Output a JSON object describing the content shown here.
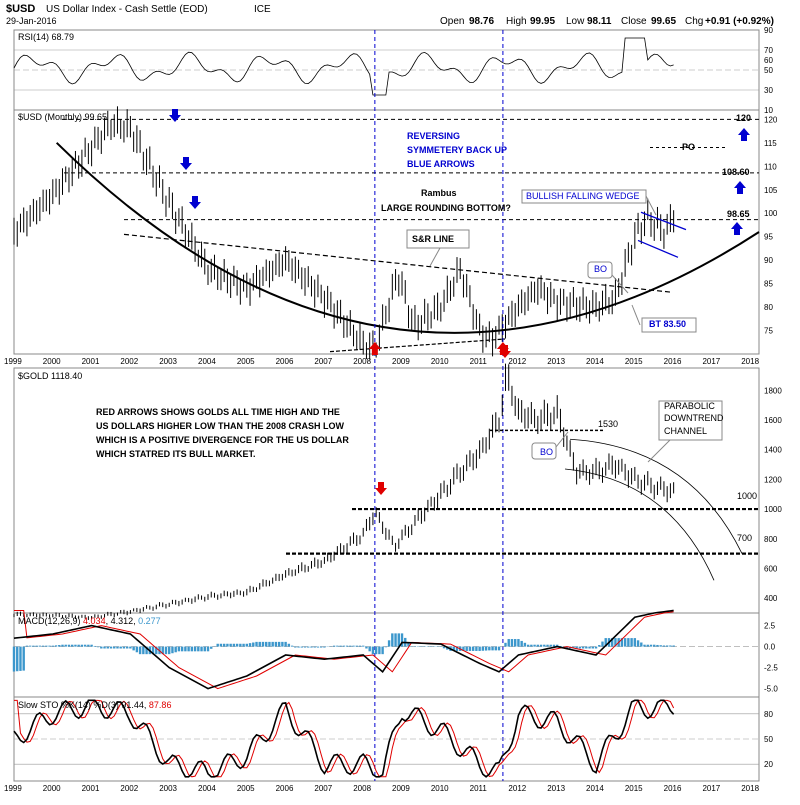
{
  "header": {
    "symbol": "$USD",
    "name": "US Dollar Index - Cash Settle (EOD)",
    "exchange": "ICE",
    "date": "29-Jan-2016",
    "open_label": "Open",
    "open": "98.76",
    "high_label": "High",
    "high": "99.95",
    "low_label": "Low",
    "low": "98.11",
    "close_label": "Close",
    "close": "99.65",
    "chg_label": "Chg",
    "chg": "+0.91 (+0.92%)"
  },
  "rsi_panel": {
    "label": "RSI(14)",
    "value": "68.79",
    "ticks": [
      "70",
      "50",
      "30"
    ],
    "top_tick": "90",
    "mid_tick": "60",
    "low_tick": "10"
  },
  "usd_panel": {
    "label": "$USD (Monthly)",
    "value": "99.65",
    "ticks": [
      "120",
      "115",
      "110",
      "105",
      "100",
      "95",
      "90",
      "85",
      "80",
      "75"
    ],
    "levels": {
      "top": "120",
      "mid": "108.60",
      "low": "98.65"
    },
    "annotations": {
      "reversing": [
        "REVERSING",
        "SYMMETERY BACK UP",
        "BLUE ARROWS"
      ],
      "po": "PO",
      "rambus": "Rambus",
      "rounding": "LARGE ROUNDING BOTTOM?",
      "wedge": "BULLISH FALLING WEDGE",
      "sr_line": "S&R LINE",
      "bo": "BO",
      "bt": "BT 83.50"
    }
  },
  "gold_panel": {
    "label": "$GOLD",
    "value": "1118.40",
    "ticks": [
      "1800",
      "1600",
      "1400",
      "1200",
      "1000",
      "800",
      "600",
      "400"
    ],
    "levels": {
      "l1530": "1530",
      "l1000": "1000",
      "l700": "700"
    },
    "annotations": {
      "red_arrows": [
        "RED ARROWS SHOWS GOLDS ALL TIME HIGH AND THE",
        "US DOLLARS HIGHER LOW THAN THE 2008 CRASH LOW",
        "WHICH IS A POSITIVE DIVERGENCE FOR THE US DOLLAR",
        "WHICH STATRED ITS BULL MARKET."
      ],
      "parabolic": [
        "PARABOLIC",
        "DOWNTREND",
        "CHANNEL"
      ],
      "bo": "BO"
    }
  },
  "macd_panel": {
    "label": "MACD(12,26,9)",
    "v1": "4.312",
    "v2": "4.034",
    "v3": "0.277",
    "ticks": [
      "2.5",
      "0.0",
      "-2.5",
      "-5.0"
    ]
  },
  "sto_panel": {
    "label": "Slow STO %K(14) %D(3)",
    "v1": "91.44",
    "v2": "87.86",
    "ticks": [
      "80",
      "50",
      "20"
    ]
  },
  "years": [
    "1999",
    "2000",
    "2001",
    "2002",
    "2003",
    "2004",
    "2005",
    "2006",
    "2007",
    "2008",
    "2009",
    "2010",
    "2011",
    "2012",
    "2013",
    "2014",
    "2015",
    "2016",
    "2017",
    "2018"
  ],
  "chart_data": [
    {
      "type": "line",
      "title": "$USD US Dollar Index - Cash Settle (EOD) ICE",
      "series": [
        {
          "name": "$USD (Monthly)",
          "x": [
            1999.0,
            2000.0,
            2001.0,
            2001.5,
            2002.0,
            2003.0,
            2004.0,
            2005.0,
            2006.0,
            2007.0,
            2008.0,
            2008.3,
            2008.9,
            2009.3,
            2010.0,
            2010.5,
            2011.0,
            2011.3,
            2012.0,
            2012.5,
            2013.0,
            2014.0,
            2014.5,
            2015.0,
            2015.3,
            2015.8,
            2016.0
          ],
          "y": [
            96,
            104,
            114,
            119,
            118,
            102,
            88,
            84,
            90,
            82,
            72,
            71,
            87,
            76,
            80,
            88,
            75,
            73,
            80,
            84,
            81,
            80,
            82,
            95,
            99,
            96,
            99.65
          ]
        }
      ],
      "ylim": [
        70,
        122
      ]
    },
    {
      "type": "line",
      "title": "$GOLD",
      "series": [
        {
          "name": "$GOLD",
          "x": [
            1999.0,
            2000.0,
            2001.0,
            2002.0,
            2003.0,
            2004.0,
            2005.0,
            2006.0,
            2007.0,
            2008.0,
            2008.3,
            2008.8,
            2009.5,
            2010.0,
            2010.5,
            2011.0,
            2011.5,
            2011.7,
            2012.0,
            2012.5,
            2013.0,
            2013.5,
            2014.0,
            2014.5,
            2015.0,
            2015.5,
            2016.0
          ],
          "y": [
            290,
            285,
            270,
            310,
            360,
            410,
            440,
            560,
            650,
            830,
            980,
            750,
            960,
            1100,
            1250,
            1380,
            1600,
            1900,
            1650,
            1600,
            1650,
            1250,
            1250,
            1300,
            1200,
            1150,
            1118
          ]
        }
      ],
      "ylim": [
        300,
        1950
      ]
    },
    {
      "type": "line",
      "title": "MACD(12,26,9)",
      "series": [
        {
          "name": "MACD(12,26,9)",
          "x": [
            1999,
            2000,
            2001,
            2002,
            2003,
            2004,
            2005,
            2006,
            2007,
            2008,
            2008.5,
            2009,
            2010,
            2011,
            2011.5,
            2012,
            2013,
            2014,
            2015,
            2015.5,
            2016
          ],
          "y": [
            1.0,
            1.5,
            2.5,
            1.5,
            -2.5,
            -5.0,
            -3.5,
            -1.0,
            -1.5,
            -1.0,
            -3.0,
            0.5,
            0.3,
            -2.0,
            -3.0,
            -1.0,
            0.0,
            -1.0,
            3.5,
            4.0,
            4.3
          ]
        },
        {
          "name": "signal",
          "values": "4.034"
        }
      ],
      "ylim": [
        -6,
        4
      ]
    },
    {
      "type": "line",
      "title": "Slow STO %K(14) %D(3)",
      "series": [
        {
          "name": "%K",
          "x": [
            1999,
            2000,
            2001,
            2002,
            2003,
            2004,
            2005,
            2006,
            2007,
            2008,
            2008.5,
            2009,
            2010,
            2011,
            2011.5,
            2012,
            2013,
            2014,
            2015,
            2015.5,
            2016
          ],
          "y": [
            50,
            80,
            90,
            80,
            20,
            10,
            30,
            85,
            20,
            20,
            10,
            85,
            60,
            20,
            10,
            80,
            70,
            20,
            90,
            85,
            91
          ]
        }
      ],
      "ylim": [
        0,
        100
      ]
    }
  ],
  "colors": {
    "blue": "#0000d0",
    "red": "#e00000",
    "macd_hist": "#3c97cc",
    "rsi_fill_green": "#3a7a3a",
    "rsi_fill_red": "#9a4a4a"
  }
}
